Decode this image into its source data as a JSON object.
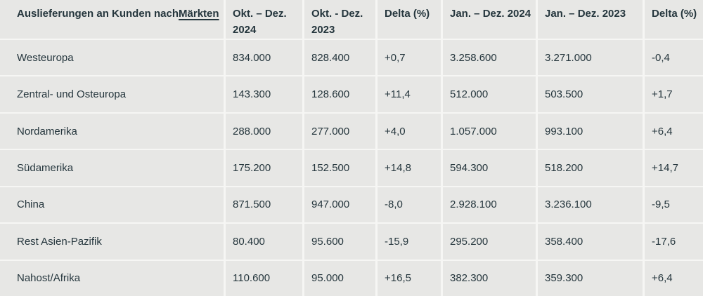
{
  "colors": {
    "cell_background": "#e7e7e5",
    "grid_gap": "#f6f6f4",
    "text": "#25363d"
  },
  "table": {
    "title_prefix": "Auslieferungen an Kunden nach ",
    "title_link": "Märkten",
    "columns": [
      "Okt. – Dez. 2024",
      "Okt. - Dez. 2023",
      "Delta (%)",
      "Jan. – Dez. 2024",
      "Jan. – Dez. 2023",
      "Delta (%)"
    ],
    "rows": [
      {
        "market": "Westeuropa",
        "values": [
          "834.000",
          "828.400",
          "+0,7",
          "3.258.600",
          "3.271.000",
          "-0,4"
        ]
      },
      {
        "market": "Zentral- und Osteuropa",
        "values": [
          "143.300",
          "128.600",
          "+11,4",
          "512.000",
          "503.500",
          "+1,7"
        ]
      },
      {
        "market": "Nordamerika",
        "values": [
          "288.000",
          "277.000",
          "+4,0",
          "1.057.000",
          "993.100",
          "+6,4"
        ]
      },
      {
        "market": "Südamerika",
        "values": [
          "175.200",
          "152.500",
          "+14,8",
          "594.300",
          "518.200",
          "+14,7"
        ]
      },
      {
        "market": "China",
        "values": [
          "871.500",
          "947.000",
          "-8,0",
          "2.928.100",
          "3.236.100",
          "-9,5"
        ]
      },
      {
        "market": "Rest Asien-Pazifik",
        "values": [
          "80.400",
          "95.600",
          "-15,9",
          "295.200",
          "358.400",
          "-17,6"
        ]
      },
      {
        "market": "Nahost/Afrika",
        "values": [
          "110.600",
          "95.000",
          "+16,5",
          "382.300",
          "359.300",
          "+6,4"
        ]
      }
    ]
  }
}
